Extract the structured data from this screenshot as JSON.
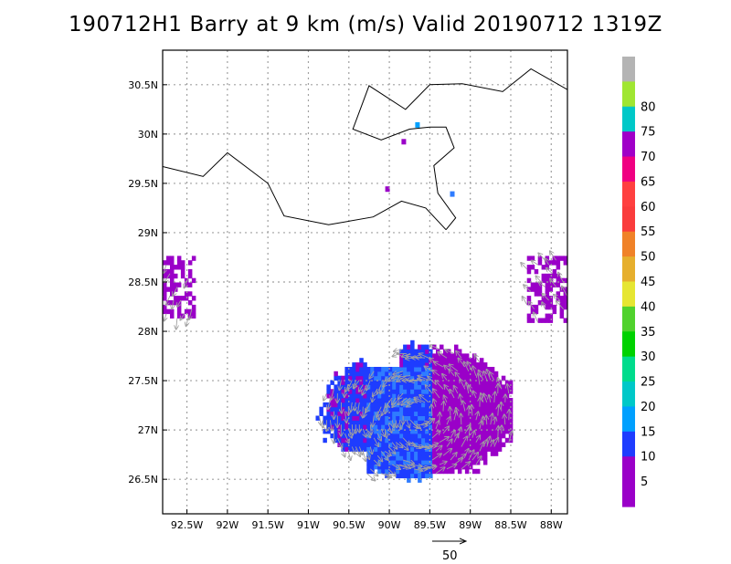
{
  "title": "190712H1 Barry at 9 km (m/s) Valid 20190712 1319Z",
  "map": {
    "lon_range": [
      -92.8,
      -87.8
    ],
    "lat_range": [
      26.15,
      30.85
    ],
    "x_ticks": [
      {
        "lon": -92.5,
        "label": "92.5W"
      },
      {
        "lon": -92.0,
        "label": "92W"
      },
      {
        "lon": -91.5,
        "label": "91.5W"
      },
      {
        "lon": -91.0,
        "label": "91W"
      },
      {
        "lon": -90.5,
        "label": "90.5W"
      },
      {
        "lon": -90.0,
        "label": "90W"
      },
      {
        "lon": -89.5,
        "label": "89.5W"
      },
      {
        "lon": -89.0,
        "label": "89W"
      },
      {
        "lon": -88.5,
        "label": "88.5W"
      },
      {
        "lon": -88.0,
        "label": "88W"
      }
    ],
    "y_ticks": [
      {
        "lat": 30.5,
        "label": "30.5N"
      },
      {
        "lat": 30.0,
        "label": "30N"
      },
      {
        "lat": 29.5,
        "label": "29.5N"
      },
      {
        "lat": 29.0,
        "label": "29N"
      },
      {
        "lat": 28.5,
        "label": "28.5N"
      },
      {
        "lat": 28.0,
        "label": "28N"
      },
      {
        "lat": 27.5,
        "label": "27.5N"
      },
      {
        "lat": 27.0,
        "label": "27N"
      },
      {
        "lat": 26.5,
        "label": "26.5N"
      }
    ],
    "grid": true,
    "coastline_west": [
      [
        -92.8,
        29.67
      ],
      [
        -92.3,
        29.57
      ],
      [
        -92.0,
        29.81
      ],
      [
        -91.5,
        29.5
      ],
      [
        -91.3,
        29.17
      ],
      [
        -90.75,
        29.08
      ],
      [
        -90.2,
        29.16
      ],
      [
        -89.85,
        29.32
      ],
      [
        -89.55,
        29.25
      ],
      [
        -89.3,
        29.03
      ]
    ],
    "coastline_delta": [
      [
        -89.3,
        29.03
      ],
      [
        -89.18,
        29.15
      ],
      [
        -89.4,
        29.4
      ],
      [
        -89.45,
        29.68
      ],
      [
        -89.2,
        29.86
      ],
      [
        -89.3,
        30.07
      ],
      [
        -89.5,
        30.07
      ],
      [
        -89.75,
        30.05
      ],
      [
        -90.1,
        29.94
      ],
      [
        -90.45,
        30.05
      ],
      [
        -90.25,
        30.49
      ],
      [
        -89.8,
        30.25
      ],
      [
        -89.5,
        30.5
      ],
      [
        -89.1,
        30.51
      ],
      [
        -88.6,
        30.43
      ],
      [
        -88.25,
        30.66
      ],
      [
        -87.8,
        30.45
      ]
    ],
    "nesdis_islands": [
      {
        "lon": -89.68,
        "lat": 30.12,
        "value": 20
      },
      {
        "lon": -89.85,
        "lat": 29.95,
        "value": 5
      },
      {
        "lon": -90.05,
        "lat": 29.47,
        "value": 5
      },
      {
        "lon": -89.25,
        "lat": 29.42,
        "value": 18
      }
    ]
  },
  "colorbar": {
    "levels": [
      "5",
      "10",
      "15",
      "20",
      "25",
      "30",
      "35",
      "40",
      "45",
      "50",
      "55",
      "60",
      "65",
      "70",
      "75",
      "80"
    ],
    "colors": [
      "#9a00c8",
      "#9a00c8",
      "#1e3cff",
      "#00a0ff",
      "#00c8c8",
      "#00dc8c",
      "#00d200",
      "#50d22d",
      "#e6e632",
      "#e6af2d",
      "#f08228",
      "#fa3c3c",
      "#ff4040",
      "#f00082",
      "#a000c8",
      "#00c8c8",
      "#a0e632",
      "#b4b4b4"
    ]
  },
  "reference_vector": {
    "label": "50"
  },
  "wind_field": {
    "main_blob": {
      "center_lon": -89.65,
      "center_lat": 27.15,
      "regions": [
        {
          "lon_min": -91.1,
          "lon_max": -90.2,
          "lat_min": 26.75,
          "lat_max": 27.25,
          "value": 12
        },
        {
          "lon_min": -90.8,
          "lon_max": -90.3,
          "lat_min": 27.1,
          "lat_max": 27.7,
          "value": 11
        },
        {
          "lon_min": -90.3,
          "lon_max": -89.5,
          "lat_min": 26.45,
          "lat_max": 27.6,
          "value": 14
        },
        {
          "lon_min": -89.5,
          "lon_max": -88.5,
          "lat_min": 26.55,
          "lat_max": 27.85,
          "value": 6
        },
        {
          "lon_min": -89.9,
          "lon_max": -89.5,
          "lat_min": 27.6,
          "lat_max": 28.1,
          "value": 12
        }
      ]
    },
    "west_patch": {
      "lon_min": -92.8,
      "lon_max": -92.4,
      "lat_min": 28.1,
      "lat_max": 28.75,
      "value": 6
    },
    "east_patch": {
      "lon_min": -88.3,
      "lon_max": -87.8,
      "lat_min": 28.05,
      "lat_max": 28.75,
      "value": 6
    }
  }
}
